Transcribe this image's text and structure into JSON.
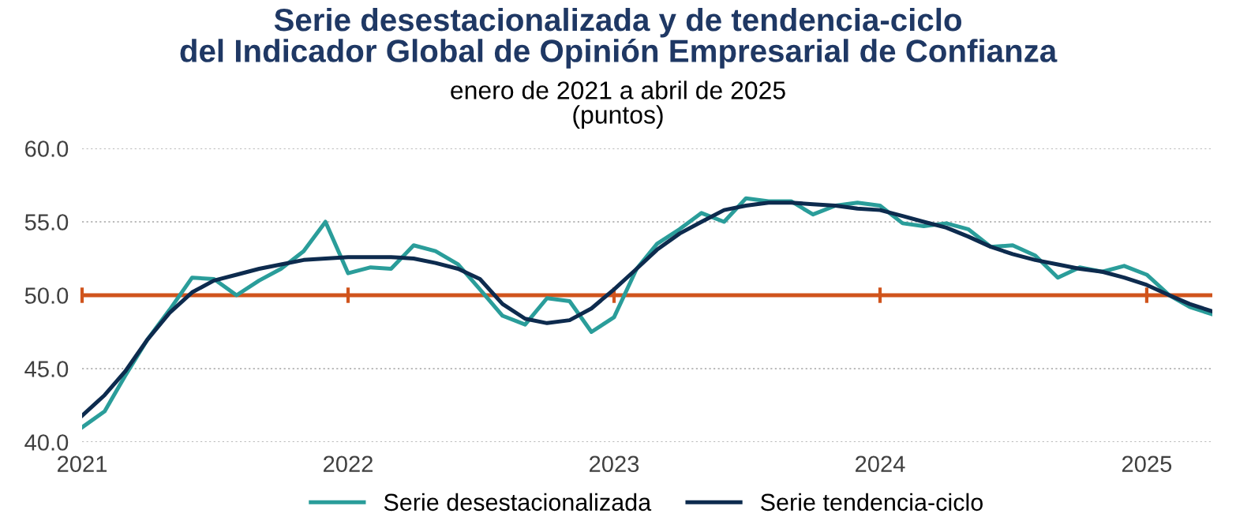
{
  "chart_data": {
    "type": "line",
    "title": "Serie desestacionalizada y de tendencia-ciclo\ndel Indicador Global de Opinión Empresarial de Confianza",
    "subtitle": "enero de 2021 a abril de 2025\n(puntos)",
    "x": [
      "2021-01",
      "2021-02",
      "2021-03",
      "2021-04",
      "2021-05",
      "2021-06",
      "2021-07",
      "2021-08",
      "2021-09",
      "2021-10",
      "2021-11",
      "2021-12",
      "2022-01",
      "2022-02",
      "2022-03",
      "2022-04",
      "2022-05",
      "2022-06",
      "2022-07",
      "2022-08",
      "2022-09",
      "2022-10",
      "2022-11",
      "2022-12",
      "2023-01",
      "2023-02",
      "2023-03",
      "2023-04",
      "2023-05",
      "2023-06",
      "2023-07",
      "2023-08",
      "2023-09",
      "2023-10",
      "2023-11",
      "2023-12",
      "2024-01",
      "2024-02",
      "2024-03",
      "2024-04",
      "2024-05",
      "2024-06",
      "2024-07",
      "2024-08",
      "2024-09",
      "2024-10",
      "2024-11",
      "2024-12",
      "2025-01",
      "2025-02",
      "2025-03",
      "2025-04"
    ],
    "series": [
      {
        "name": "Serie desestacionalizada",
        "color": "#2a9d9a",
        "values": [
          41.0,
          42.1,
          44.5,
          47.0,
          49.0,
          51.2,
          51.1,
          50.0,
          51.0,
          51.8,
          53.0,
          55.0,
          51.5,
          51.9,
          51.8,
          53.4,
          53.0,
          52.1,
          50.4,
          48.6,
          48.0,
          49.8,
          49.6,
          47.5,
          48.5,
          51.8,
          53.5,
          54.5,
          55.6,
          55.0,
          56.6,
          56.4,
          56.4,
          55.5,
          56.1,
          56.3,
          56.1,
          54.9,
          54.7,
          54.9,
          54.5,
          53.3,
          53.4,
          52.7,
          51.2,
          51.9,
          51.6,
          52.0,
          51.4,
          50.0,
          49.2,
          48.7
        ]
      },
      {
        "name": "Serie tendencia-ciclo",
        "color": "#0d2b4e",
        "values": [
          41.8,
          43.2,
          44.8,
          47.0,
          48.8,
          50.2,
          51.0,
          51.4,
          51.8,
          52.1,
          52.4,
          52.5,
          52.6,
          52.6,
          52.6,
          52.5,
          52.2,
          51.8,
          51.1,
          49.4,
          48.4,
          48.1,
          48.3,
          49.1,
          50.4,
          51.8,
          53.1,
          54.2,
          55.0,
          55.8,
          56.1,
          56.3,
          56.3,
          56.2,
          56.1,
          55.9,
          55.8,
          55.4,
          55.0,
          54.6,
          54.0,
          53.3,
          52.8,
          52.4,
          52.1,
          51.8,
          51.6,
          51.2,
          50.7,
          50.0,
          49.4,
          48.9
        ]
      }
    ],
    "xlim": [
      "2021-01",
      "2025-04"
    ],
    "xticks": [
      {
        "value": "2021-01",
        "label": "2021"
      },
      {
        "value": "2022-01",
        "label": "2022"
      },
      {
        "value": "2023-01",
        "label": "2023"
      },
      {
        "value": "2024-01",
        "label": "2024"
      },
      {
        "value": "2025-01",
        "label": "2025"
      }
    ],
    "ylim": [
      40,
      60
    ],
    "yticks": [
      {
        "value": 40,
        "label": "40.0"
      },
      {
        "value": 45,
        "label": "45.0"
      },
      {
        "value": 50,
        "label": "50.0"
      },
      {
        "value": 55,
        "label": "55.0"
      },
      {
        "value": 60,
        "label": "60.0"
      }
    ],
    "ref_lines": [
      {
        "axis": "y",
        "value": 50,
        "label": null,
        "color": "#d0541c"
      }
    ],
    "grid": "y",
    "legend": "bottom",
    "marker": "none",
    "line_style": "solid"
  }
}
